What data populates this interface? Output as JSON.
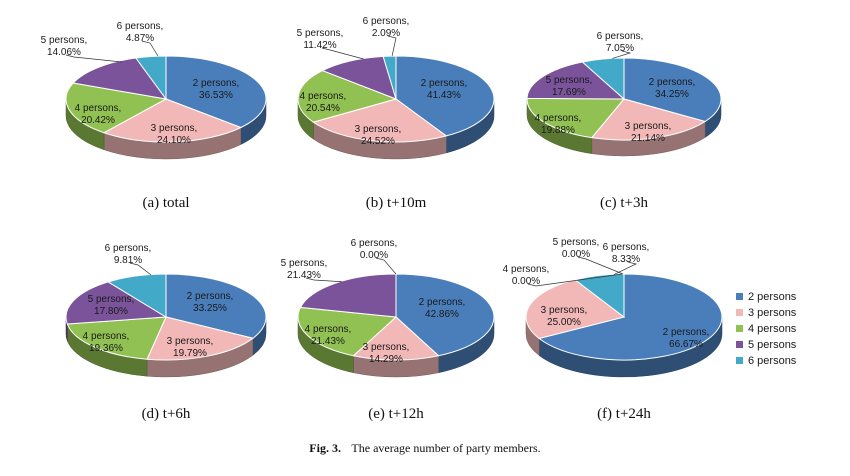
{
  "colors": {
    "2 persons": "#4a7ebb",
    "3 persons": "#f2b8b8",
    "4 persons": "#92c153",
    "5 persons": "#7b539b",
    "6 persons": "#43a9c9"
  },
  "legend": {
    "items": [
      "2 persons",
      "3 persons",
      "4 persons",
      "5 persons",
      "6 persons"
    ]
  },
  "caption": {
    "label": "Fig. 3.",
    "text": "The average number of party members."
  },
  "chart_data": [
    {
      "type": "pie",
      "subtitle": "(a) total",
      "labels": [
        "2 persons",
        "3 persons",
        "4 persons",
        "5 persons",
        "6 persons"
      ],
      "values": [
        36.53,
        24.1,
        20.42,
        14.06,
        4.87
      ],
      "value_labels": [
        "36.53%",
        "24.10%",
        "20.42%",
        "14.06%",
        "4.87%"
      ]
    },
    {
      "type": "pie",
      "subtitle": "(b) t+10m",
      "labels": [
        "2 persons",
        "3 persons",
        "4 persons",
        "5 persons",
        "6 persons"
      ],
      "values": [
        41.43,
        24.52,
        20.54,
        11.42,
        2.09
      ],
      "value_labels": [
        "41.43%",
        "24.52%",
        "20.54%",
        "11.42%",
        "2.09%"
      ]
    },
    {
      "type": "pie",
      "subtitle": "(c) t+3h",
      "labels": [
        "2 persons",
        "3 persons",
        "4 persons",
        "5 persons",
        "6 persons"
      ],
      "values": [
        34.25,
        21.14,
        19.88,
        17.69,
        7.05
      ],
      "value_labels": [
        "34.25%",
        "21.14%",
        "19.88%",
        "17.69%",
        "7.05%"
      ]
    },
    {
      "type": "pie",
      "subtitle": "(d) t+6h",
      "labels": [
        "2 persons",
        "3 persons",
        "4 persons",
        "5 persons",
        "6 persons"
      ],
      "values": [
        33.25,
        19.79,
        19.36,
        17.8,
        9.81
      ],
      "value_labels": [
        "33.25%",
        "19.79%",
        "19.36%",
        "17.80%",
        "9.81%"
      ]
    },
    {
      "type": "pie",
      "subtitle": "(e) t+12h",
      "labels": [
        "2 persons",
        "3 persons",
        "4 persons",
        "5 persons",
        "6 persons"
      ],
      "values": [
        42.86,
        14.29,
        21.43,
        21.43,
        0.0
      ],
      "value_labels": [
        "42.86%",
        "14.29%",
        "21.43%",
        "21.43%",
        "0.00%"
      ]
    },
    {
      "type": "pie",
      "subtitle": "(f) t+24h",
      "labels": [
        "2 persons",
        "3 persons",
        "4 persons",
        "5 persons",
        "6 persons"
      ],
      "values": [
        66.67,
        25.0,
        0.0,
        0.0,
        8.33
      ],
      "value_labels": [
        "66.67%",
        "25.00%",
        "0.00%",
        "0.00%",
        "8.33%"
      ]
    }
  ]
}
